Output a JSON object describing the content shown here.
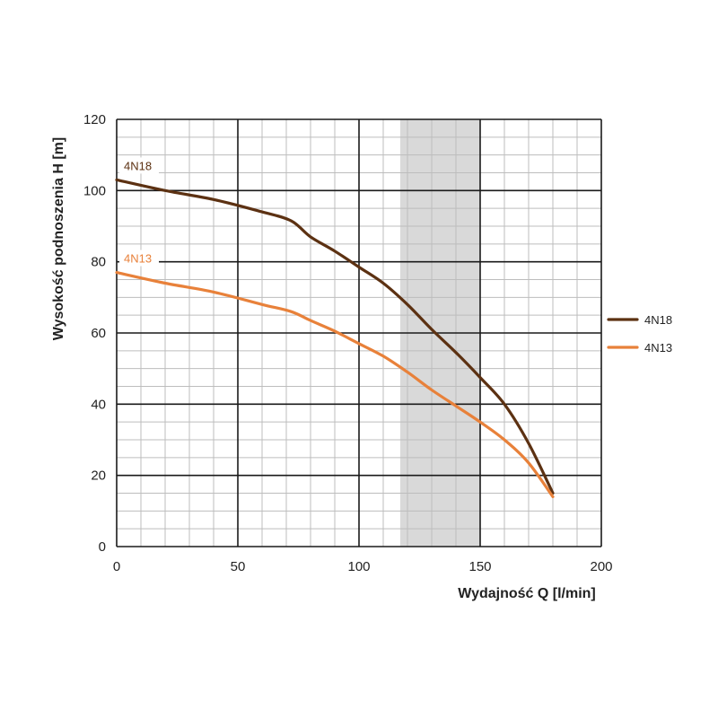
{
  "chart_data": {
    "type": "line",
    "xlabel": "Wydajność Q [l/min]",
    "ylabel": "Wysokość podnoszenia H [m]",
    "xlim": [
      0,
      200
    ],
    "ylim": [
      0,
      120
    ],
    "xticks": [
      0,
      50,
      100,
      150,
      200
    ],
    "yticks": [
      0,
      20,
      40,
      60,
      80,
      100,
      120
    ],
    "minor_x_step": 10,
    "minor_y_step": 5,
    "grid": true,
    "legend_position": "right",
    "highlight_band": {
      "x_from": 117,
      "x_to": 150,
      "color": "#d9d9d9"
    },
    "series": [
      {
        "name": "4N18",
        "color": "#5c3112",
        "label": "4N18",
        "x": [
          0,
          20,
          40,
          60,
          72,
          80,
          90,
          100,
          110,
          120,
          130,
          140,
          150,
          160,
          170,
          180
        ],
        "y": [
          103,
          100,
          97.5,
          94,
          91.5,
          87,
          83,
          78.5,
          74,
          68,
          61,
          54.5,
          47.5,
          40,
          29,
          15
        ]
      },
      {
        "name": "4N13",
        "color": "#e8813a",
        "label": "4N13",
        "x": [
          0,
          20,
          40,
          60,
          72,
          80,
          90,
          100,
          110,
          120,
          130,
          140,
          150,
          160,
          170,
          180
        ],
        "y": [
          77,
          74,
          71.5,
          68,
          66,
          63.5,
          60.5,
          57,
          53.5,
          49,
          44,
          39.5,
          35,
          30,
          23.5,
          14
        ]
      }
    ]
  }
}
